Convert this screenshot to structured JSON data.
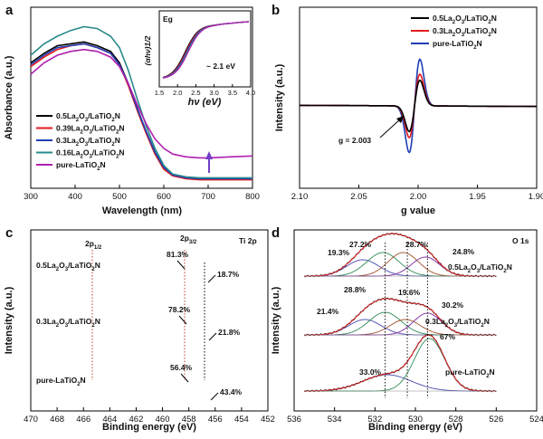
{
  "chart_data": [
    {
      "panel": "a",
      "type": "line",
      "xlabel": "Wavelength (nm)",
      "ylabel": "Absorbance (a.u.)",
      "xlim": [
        300,
        800
      ],
      "xticks": [
        "300",
        "400",
        "500",
        "600",
        "700",
        "800"
      ],
      "legend_position": "bottom-left",
      "series": [
        {
          "name": "0.5La2O3/LaTiO2N",
          "color": "#000000",
          "x": [
            300,
            330,
            360,
            390,
            420,
            450,
            480,
            500,
            520,
            540,
            560,
            580,
            600,
            620,
            650,
            680,
            700,
            750,
            800
          ],
          "y": [
            0.66,
            0.71,
            0.75,
            0.76,
            0.77,
            0.75,
            0.72,
            0.66,
            0.55,
            0.42,
            0.3,
            0.19,
            0.11,
            0.07,
            0.055,
            0.05,
            0.05,
            0.05,
            0.05
          ]
        },
        {
          "name": "0.39La2O3/LaTiO2N",
          "color": "#e31a1c",
          "x": [
            300,
            330,
            360,
            390,
            420,
            450,
            480,
            500,
            520,
            540,
            560,
            580,
            600,
            620,
            650,
            680,
            700,
            750,
            800
          ],
          "y": [
            0.64,
            0.69,
            0.73,
            0.75,
            0.76,
            0.74,
            0.71,
            0.65,
            0.54,
            0.41,
            0.29,
            0.18,
            0.1,
            0.065,
            0.05,
            0.045,
            0.045,
            0.045,
            0.045
          ]
        },
        {
          "name": "0.3La2O3/LaTiO2N",
          "color": "#1f3fb4",
          "x": [
            300,
            330,
            360,
            390,
            420,
            450,
            480,
            500,
            520,
            540,
            560,
            580,
            600,
            620,
            650,
            680,
            700,
            750,
            800
          ],
          "y": [
            0.65,
            0.7,
            0.74,
            0.75,
            0.76,
            0.74,
            0.71,
            0.65,
            0.55,
            0.42,
            0.3,
            0.19,
            0.11,
            0.07,
            0.055,
            0.05,
            0.05,
            0.05,
            0.05
          ]
        },
        {
          "name": "0.16La2O3/LaTiO2N",
          "color": "#2a8a8a",
          "x": [
            300,
            330,
            360,
            390,
            420,
            450,
            480,
            500,
            520,
            540,
            560,
            580,
            600,
            620,
            650,
            680,
            700,
            750,
            800
          ],
          "y": [
            0.7,
            0.76,
            0.8,
            0.83,
            0.85,
            0.84,
            0.8,
            0.74,
            0.62,
            0.47,
            0.33,
            0.21,
            0.12,
            0.075,
            0.06,
            0.055,
            0.055,
            0.055,
            0.055
          ]
        },
        {
          "name": "pure-LaTiO2N",
          "color": "#b020b0",
          "x": [
            300,
            330,
            360,
            390,
            420,
            450,
            480,
            500,
            520,
            540,
            560,
            580,
            600,
            620,
            650,
            680,
            700,
            750,
            800
          ],
          "y": [
            0.6,
            0.66,
            0.7,
            0.72,
            0.73,
            0.72,
            0.69,
            0.64,
            0.55,
            0.44,
            0.34,
            0.26,
            0.21,
            0.18,
            0.165,
            0.16,
            0.16,
            0.165,
            0.17
          ]
        }
      ],
      "inset": {
        "title": "Eg",
        "xlabel": "hν (eV)",
        "ylabel": "(αhν)1/2",
        "xlim": [
          1.5,
          4.0
        ],
        "xticks": [
          "1.5",
          "2.0",
          "2.5",
          "3.0",
          "3.5",
          "4.0"
        ],
        "annotation": "~ 2.1 eV"
      }
    },
    {
      "panel": "b",
      "type": "line",
      "xlabel": "g value",
      "ylabel": "Intensity (a.u.)",
      "xlim": [
        2.1,
        1.9
      ],
      "xticks": [
        "2.10",
        "2.05",
        "2.00",
        "1.95",
        "1.90"
      ],
      "annotation": "g = 2.003",
      "legend_position": "top-right",
      "series": [
        {
          "name": "0.5La2O3/LaTiO2N",
          "color": "#000000",
          "amplitude": 0.55
        },
        {
          "name": "0.3La2O3/LaTiO2N",
          "color": "#e31a1c",
          "amplitude": 0.68
        },
        {
          "name": "pure-LaTiO2N",
          "color": "#1f3fb4",
          "amplitude": 1.0
        }
      ]
    },
    {
      "panel": "c",
      "type": "line",
      "title": "Ti 2p",
      "xlabel": "Binding energy (eV)",
      "ylabel": "Intensity (a.u.)",
      "xlim": [
        470,
        452
      ],
      "xticks": [
        "470",
        "468",
        "466",
        "464",
        "462",
        "460",
        "458",
        "456",
        "454",
        "452"
      ],
      "peak_labels": [
        "2p1/2",
        "2p3/2"
      ],
      "traces": [
        {
          "label": "0.5La2O3/LaTiO2N",
          "percent_a": "81.3%",
          "percent_b": "18.7%"
        },
        {
          "label": "0.3La2O3/LaTiO2N",
          "percent_a": "78.2%",
          "percent_b": "21.8%"
        },
        {
          "label": "pure-LaTiO2N",
          "percent_a": "56.4%",
          "percent_b": "43.4%"
        }
      ]
    },
    {
      "panel": "d",
      "type": "line",
      "title": "O 1s",
      "xlabel": "Binding energy (eV)",
      "ylabel": "Intensity (a.u.)",
      "xlim": [
        536,
        524
      ],
      "xticks": [
        "536",
        "534",
        "532",
        "530",
        "528",
        "526",
        "524"
      ],
      "traces": [
        {
          "label": "0.5La2O3/LaTiO2N",
          "percents": [
            "19.3%",
            "27.2%",
            "28.7%",
            "24.8%"
          ]
        },
        {
          "label": "0.3La2O3/LaTiO2N",
          "percents": [
            "21.4%",
            "28.8%",
            "19.6%",
            "30.2%"
          ]
        },
        {
          "label": "pure-LaTiO2N",
          "percents": [
            "33.0%",
            "67%"
          ]
        }
      ]
    }
  ]
}
